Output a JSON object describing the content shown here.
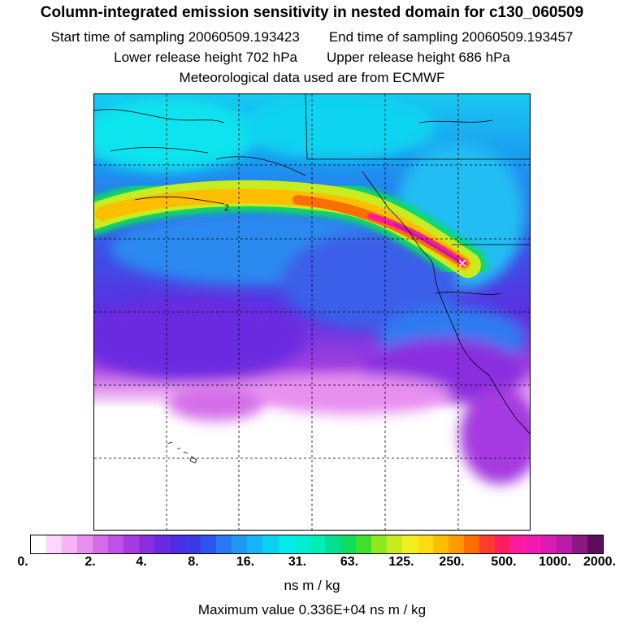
{
  "title": "Column-integrated emission sensitivity in nested domain for c130_060509",
  "start_time": "Start time of sampling 20060509.193423",
  "end_time": "End time of sampling 20060509.193457",
  "lower_release": "Lower release height  702 hPa",
  "upper_release": "Upper release height  686 hPa",
  "met_data": "Meteorological data used are from ECMWF",
  "contour_label": "2",
  "colorbar": {
    "ticks": [
      "0.",
      "2.",
      "4.",
      "8.",
      "16.",
      "31.",
      "63.",
      "125.",
      "250.",
      "500.",
      "1000.",
      "2000."
    ],
    "unit": "ns m / kg",
    "colors": [
      "#ffffff",
      "#ffd6ff",
      "#f6b4f6",
      "#e890f0",
      "#d46ee8",
      "#c050e6",
      "#a53ae0",
      "#8a2fe0",
      "#6a2ae0",
      "#4d2de6",
      "#3a3ae8",
      "#2f55ee",
      "#2a78f2",
      "#1f98f4",
      "#14b6f6",
      "#0ad2f2",
      "#00ecec",
      "#00eed6",
      "#00eeb4",
      "#00e090",
      "#10dc60",
      "#40e030",
      "#90e820",
      "#c8ec20",
      "#f0f020",
      "#ffdc10",
      "#ffbe00",
      "#ff9a00",
      "#ff6e00",
      "#ff3a30",
      "#ff1c60",
      "#ff1aa0",
      "#f01ab0",
      "#d81cb0",
      "#b81ca8",
      "#8a1880",
      "#5a0f58"
    ]
  },
  "max_value": "Maximum value  0.336E+04 ns m / kg"
}
